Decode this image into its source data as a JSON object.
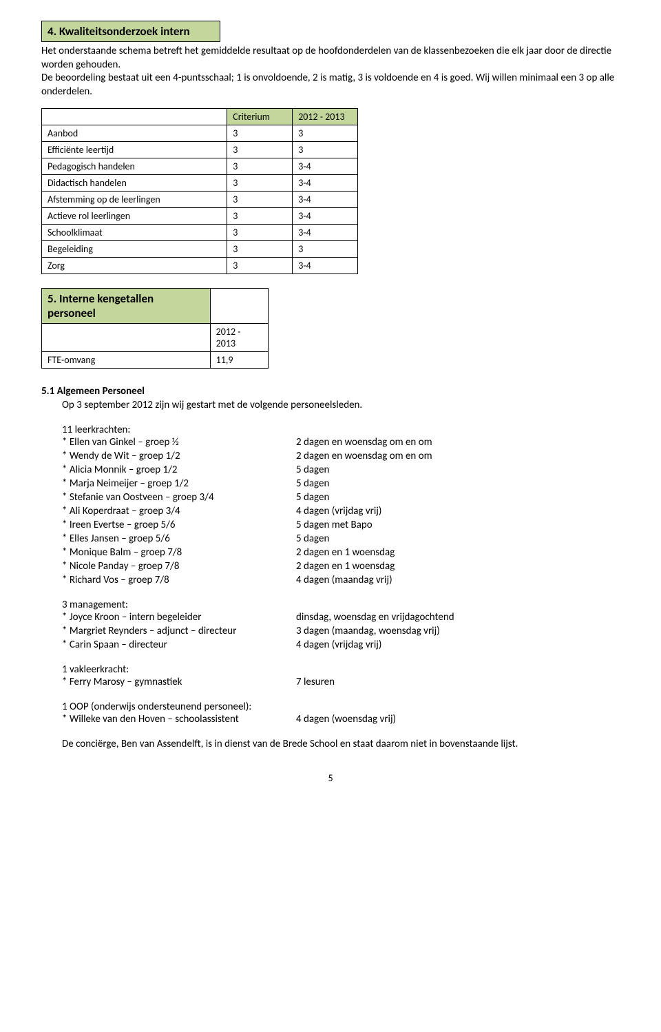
{
  "section4": {
    "title": "4.  Kwaliteitsonderzoek intern",
    "intro": "Het onderstaande schema betreft het gemiddelde resultaat op de hoofdonderdelen van de klassenbezoeken die elk jaar door de directie worden gehouden.",
    "intro2": "De beoordeling bestaat uit een 4-puntsschaal; 1 is onvoldoende, 2 is matig, 3 is voldoende en 4 is goed. Wij willen minimaal een 3 op alle onderdelen.",
    "table": {
      "headers": [
        "",
        "Criterium",
        "2012 - 2013"
      ],
      "rows": [
        [
          "Aanbod",
          "3",
          "3"
        ],
        [
          "Efficiënte leertijd",
          "3",
          "3"
        ],
        [
          "Pedagogisch handelen",
          "3",
          "3-4"
        ],
        [
          "Didactisch handelen",
          "3",
          "3-4"
        ],
        [
          "Afstemming op de leerlingen",
          "3",
          "3-4"
        ],
        [
          "Actieve rol leerlingen",
          "3",
          "3-4"
        ],
        [
          "Schoolklimaat",
          "3",
          "3-4"
        ],
        [
          "Begeleiding",
          "3",
          "3"
        ],
        [
          "Zorg",
          "3",
          "3-4"
        ]
      ],
      "colors": {
        "header_bg": "#c3d69b",
        "border": "#000000"
      }
    }
  },
  "section5": {
    "title": "5. Interne kengetallen personeel",
    "year": "2012 - 2013",
    "fte_label": "FTE-omvang",
    "fte_value": "11,9"
  },
  "section5_1": {
    "header": "5.1 Algemeen Personeel",
    "intro": "Op 3 september 2012 zijn wij gestart met de volgende personeelsleden.",
    "teachers_header": "11 leerkrachten:",
    "teachers": [
      {
        "left": "* Ellen van Ginkel – groep ½",
        "right": "2 dagen en woensdag om en om"
      },
      {
        "left": "* Wendy de Wit – groep 1/2",
        "right": "2 dagen en woensdag om en om"
      },
      {
        "left": "* Alicia Monnik – groep 1/2",
        "right": "5 dagen"
      },
      {
        "left": "* Marja Neimeijer – groep 1/2",
        "right": "5 dagen"
      },
      {
        "left": "* Stefanie van Oostveen – groep 3/4",
        "right": "5 dagen"
      },
      {
        "left": "* Ali Koperdraat – groep 3/4",
        "right": "4 dagen (vrijdag vrij)"
      },
      {
        "left": "* Ireen Evertse – groep 5/6",
        "right": "5 dagen met Bapo"
      },
      {
        "left": "* Elles Jansen – groep 5/6",
        "right": "5 dagen"
      },
      {
        "left": "* Monique Balm – groep 7/8",
        "right": "2 dagen en 1 woensdag"
      },
      {
        "left": "* Nicole Panday – groep 7/8",
        "right": "2 dagen en 1 woensdag"
      },
      {
        "left": "* Richard Vos – groep 7/8",
        "right": "4 dagen (maandag vrij)"
      }
    ],
    "management_header": "3 management:",
    "management": [
      {
        "left": "* Joyce Kroon – intern begeleider",
        "right": "dinsdag, woensdag en vrijdagochtend"
      },
      {
        "left": "* Margriet Reynders – adjunct – directeur",
        "right": "3 dagen (maandag, woensdag vrij)"
      },
      {
        "left": "* Carin Spaan – directeur",
        "right": "4 dagen (vrijdag vrij)"
      }
    ],
    "vakleerkracht_header": "1 vakleerkracht:",
    "vakleerkracht": [
      {
        "left": "* Ferry Marosy – gymnastiek",
        "right": "7 lesuren"
      }
    ],
    "oop_header": "1 OOP (onderwijs ondersteunend personeel):",
    "oop": [
      {
        "left": "* Willeke van den Hoven – schoolassistent",
        "right": "4 dagen (woensdag vrij)"
      }
    ],
    "final": "De conciërge, Ben van Assendelft, is in dienst van de Brede School en staat daarom niet in bovenstaande lijst."
  },
  "page_number": "5"
}
